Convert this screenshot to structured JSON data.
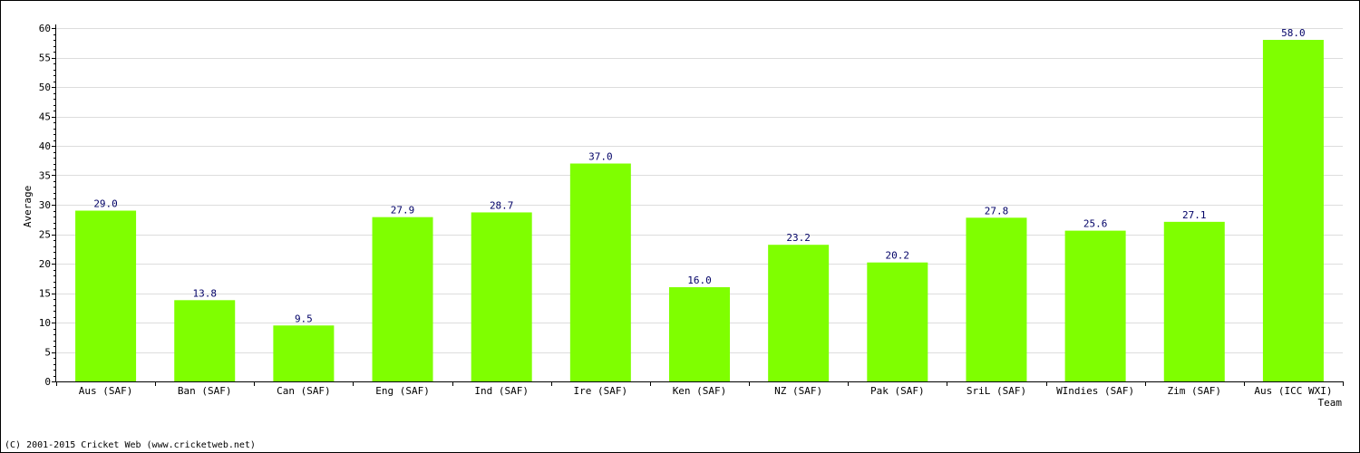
{
  "chart_data": {
    "type": "bar",
    "title": "",
    "xlabel": "Team",
    "ylabel": "Average",
    "ylim": [
      0,
      60
    ],
    "y_ticks": [
      0,
      5,
      10,
      15,
      20,
      25,
      30,
      35,
      40,
      45,
      50,
      55,
      60
    ],
    "grid": true,
    "categories": [
      "Aus (SAF)",
      "Ban (SAF)",
      "Can (SAF)",
      "Eng (SAF)",
      "Ind (SAF)",
      "Ire (SAF)",
      "Ken (SAF)",
      "NZ (SAF)",
      "Pak (SAF)",
      "SriL (SAF)",
      "WIndies (SAF)",
      "Zim (SAF)",
      "Aus (ICC WXI)"
    ],
    "values": [
      29.0,
      13.8,
      9.5,
      27.9,
      28.7,
      37.0,
      16.0,
      23.2,
      20.2,
      27.8,
      25.6,
      27.1,
      58.0
    ],
    "value_labels": [
      "29.0",
      "13.8",
      "9.5",
      "27.9",
      "28.7",
      "37.0",
      "16.0",
      "23.2",
      "20.2",
      "27.8",
      "25.6",
      "27.1",
      "58.0"
    ],
    "bar_color": "#7fff00",
    "label_color": "#000066",
    "grid_color": "#dddddd"
  },
  "footer": "(C) 2001-2015 Cricket Web (www.cricketweb.net)"
}
